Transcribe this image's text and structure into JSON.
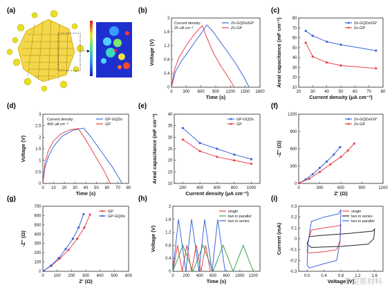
{
  "panel_letters": [
    "(a)",
    "(b)",
    "(c)",
    "(d)",
    "(e)",
    "(f)",
    "(g)",
    "(h)",
    "(i)"
  ],
  "watermark": "新型炭材料",
  "colors": {
    "blue": "#3a66d8",
    "red": "#e8434a",
    "green": "#3aa34a",
    "black": "#222222"
  },
  "chart_data": [
    {
      "id": "b",
      "type": "line",
      "xlabel": "Time (s)",
      "ylabel": "Voltage (V)",
      "xlim": [
        0,
        1800
      ],
      "ylim": [
        0,
        2.0
      ],
      "xticks": [
        0,
        300,
        600,
        900,
        1200,
        1500,
        1800
      ],
      "yticks": [
        0,
        0.4,
        0.8,
        1.2,
        1.6,
        2.0
      ],
      "annotation": [
        "Current density:",
        "25 uA cm⁻²"
      ],
      "legend_pos": "top-right",
      "series": [
        {
          "name": "Zn-GQDs/GP",
          "color": "blue",
          "points": [
            [
              0,
              0
            ],
            [
              80,
              0.45
            ],
            [
              200,
              0.75
            ],
            [
              350,
              1.05
            ],
            [
              500,
              1.35
            ],
            [
              600,
              1.55
            ],
            [
              720,
              1.8
            ],
            [
              850,
              1.6
            ],
            [
              1000,
              1.3
            ],
            [
              1150,
              1.0
            ],
            [
              1300,
              0.7
            ],
            [
              1450,
              0.35
            ],
            [
              1580,
              0
            ]
          ]
        },
        {
          "name": "Zn-GP",
          "color": "red",
          "points": [
            [
              0,
              0
            ],
            [
              60,
              0.5
            ],
            [
              150,
              0.85
            ],
            [
              300,
              1.2
            ],
            [
              450,
              1.5
            ],
            [
              560,
              1.68
            ],
            [
              630,
              1.78
            ],
            [
              700,
              1.5
            ],
            [
              850,
              1.0
            ],
            [
              1000,
              0.62
            ],
            [
              1150,
              0.3
            ],
            [
              1280,
              0
            ]
          ]
        }
      ]
    },
    {
      "id": "c",
      "type": "line",
      "xlabel": "Current density (μA cm⁻²)",
      "ylabel": "Areal capacitance (mF cm⁻²)",
      "xlim": [
        20,
        80
      ],
      "ylim": [
        10,
        80
      ],
      "xticks": [
        20,
        30,
        40,
        50,
        60,
        70,
        80
      ],
      "yticks": [
        10,
        20,
        30,
        40,
        50,
        60,
        70,
        80
      ],
      "legend_pos": "top-right",
      "markers": true,
      "series": [
        {
          "name": "Zn-GQDs/GP",
          "color": "blue",
          "points": [
            [
              25,
              67
            ],
            [
              30,
              62
            ],
            [
              40,
              56
            ],
            [
              50,
              53
            ],
            [
              75,
              47
            ]
          ]
        },
        {
          "name": "Zn-GP",
          "color": "red",
          "points": [
            [
              25,
              55
            ],
            [
              30,
              41
            ],
            [
              40,
              35
            ],
            [
              50,
              32
            ],
            [
              75,
              29
            ]
          ]
        }
      ]
    },
    {
      "id": "d",
      "type": "line",
      "xlabel": "Time (s)",
      "ylabel": "Voltage (V)",
      "xlim": [
        0,
        80
      ],
      "ylim": [
        0,
        3.0
      ],
      "xticks": [
        0,
        10,
        20,
        30,
        40,
        50,
        60,
        70,
        80
      ],
      "yticks": [
        0,
        0.5,
        1.0,
        1.5,
        2.0,
        2.5,
        3.0
      ],
      "annotation": [
        "Current density:",
        "400 uA cm⁻²"
      ],
      "legend_pos": "top-right",
      "series": [
        {
          "name": "GP-GQDs",
          "color": "blue",
          "points": [
            [
              0,
              0
            ],
            [
              2,
              0.7
            ],
            [
              5,
              1.15
            ],
            [
              10,
              1.6
            ],
            [
              18,
              2.05
            ],
            [
              28,
              2.3
            ],
            [
              38,
              2.4
            ],
            [
              45,
              2.0
            ],
            [
              55,
              1.35
            ],
            [
              65,
              0.7
            ],
            [
              74,
              0
            ]
          ]
        },
        {
          "name": "GP",
          "color": "red",
          "points": [
            [
              0,
              0
            ],
            [
              2,
              0.9
            ],
            [
              5,
              1.4
            ],
            [
              10,
              1.85
            ],
            [
              17,
              2.15
            ],
            [
              25,
              2.32
            ],
            [
              33,
              2.38
            ],
            [
              40,
              1.9
            ],
            [
              50,
              1.1
            ],
            [
              57,
              0.55
            ],
            [
              63,
              0
            ]
          ]
        }
      ]
    },
    {
      "id": "e",
      "type": "line",
      "xlabel": "Current density (μA cm⁻²)",
      "ylabel": "Areal capacitance (mF cm⁻²)",
      "xlim": [
        100,
        1100
      ],
      "ylim": [
        10,
        40
      ],
      "xticks": [
        200,
        400,
        600,
        800,
        1000
      ],
      "yticks": [
        10,
        15,
        20,
        25,
        30,
        35,
        40
      ],
      "legend_pos": "top-right",
      "markers": true,
      "series": [
        {
          "name": "GP-GQDs",
          "color": "blue",
          "points": [
            [
              200,
              34
            ],
            [
              400,
              27.5
            ],
            [
              600,
              25
            ],
            [
              800,
              22.5
            ],
            [
              1000,
              20.5
            ]
          ]
        },
        {
          "name": "GP",
          "color": "red",
          "points": [
            [
              200,
              29
            ],
            [
              400,
              24
            ],
            [
              600,
              21.5
            ],
            [
              800,
              20
            ],
            [
              1000,
              18.5
            ]
          ]
        }
      ]
    },
    {
      "id": "f",
      "type": "line",
      "xlabel": "Z' (Ω)",
      "ylabel": "-Z'' (Ω)",
      "xlim": [
        0,
        1200
      ],
      "ylim": [
        0,
        1200
      ],
      "xticks": [
        0,
        300,
        600,
        900,
        1200
      ],
      "yticks": [
        0,
        300,
        600,
        900,
        1200
      ],
      "legend_pos": "top-right",
      "markers": true,
      "series": [
        {
          "name": "Zn-GQDs/GP",
          "color": "blue",
          "points": [
            [
              5,
              5
            ],
            [
              100,
              70
            ],
            [
              200,
              160
            ],
            [
              300,
              270
            ],
            [
              400,
              380
            ],
            [
              500,
              500
            ],
            [
              590,
              630
            ]
          ]
        },
        {
          "name": "Zn-GP",
          "color": "red",
          "points": [
            [
              5,
              5
            ],
            [
              150,
              80
            ],
            [
              300,
              200
            ],
            [
              450,
              330
            ],
            [
              600,
              460
            ],
            [
              700,
              570
            ],
            [
              790,
              690
            ]
          ]
        }
      ]
    },
    {
      "id": "g",
      "type": "line",
      "xlabel": "Z' (Ω)",
      "ylabel": "-Z'' (Ω)",
      "xlim": [
        0,
        600
      ],
      "ylim": [
        0,
        700
      ],
      "xticks": [
        0,
        100,
        200,
        300,
        400,
        500,
        600
      ],
      "yticks": [
        0,
        100,
        200,
        300,
        400,
        500,
        600,
        700
      ],
      "legend_pos": "top-right",
      "markers": true,
      "series": [
        {
          "name": "GP",
          "color": "red",
          "points": [
            [
              5,
              5
            ],
            [
              60,
              60
            ],
            [
              120,
              140
            ],
            [
              180,
              230
            ],
            [
              240,
              350
            ],
            [
              290,
              470
            ],
            [
              330,
              610
            ]
          ]
        },
        {
          "name": "GP-GQDs",
          "color": "blue",
          "points": [
            [
              5,
              5
            ],
            [
              55,
              60
            ],
            [
              110,
              140
            ],
            [
              160,
              240
            ],
            [
              210,
              350
            ],
            [
              250,
              470
            ],
            [
              285,
              615
            ]
          ]
        }
      ]
    },
    {
      "id": "h",
      "type": "line",
      "xlabel": "Time (s)",
      "ylabel": "Voltage (V)",
      "xlim": [
        0,
        1300
      ],
      "ylim": [
        0,
        2.0
      ],
      "xticks": [
        0,
        200,
        400,
        600,
        800,
        1000,
        1200
      ],
      "yticks": [
        0,
        0.4,
        0.8,
        1.2,
        1.6,
        2.0
      ],
      "legend_pos": "top-right",
      "series": [
        {
          "name": "single",
          "color": "red",
          "points": [
            [
              0,
              0
            ],
            [
              70,
              0.8
            ],
            [
              140,
              0
            ],
            [
              210,
              0.8
            ],
            [
              280,
              0
            ],
            [
              350,
              0.8
            ],
            [
              420,
              0
            ],
            [
              490,
              0.8
            ],
            [
              560,
              0
            ]
          ]
        },
        {
          "name": "two in parallel",
          "color": "green",
          "points": [
            [
              0,
              0
            ],
            [
              150,
              0.8
            ],
            [
              300,
              0
            ],
            [
              450,
              0.8
            ],
            [
              600,
              0
            ],
            [
              750,
              0.8
            ],
            [
              900,
              0
            ],
            [
              1050,
              0.8
            ],
            [
              1200,
              0
            ]
          ]
        },
        {
          "name": "two in series",
          "color": "blue",
          "points": [
            [
              0,
              0
            ],
            [
              85,
              1.6
            ],
            [
              195,
              0
            ],
            [
              280,
              1.6
            ],
            [
              390,
              0
            ],
            [
              475,
              1.6
            ],
            [
              585,
              0
            ],
            [
              670,
              1.6
            ],
            [
              780,
              0
            ]
          ]
        }
      ]
    },
    {
      "id": "i",
      "type": "line",
      "xlabel": "Voltage (V)",
      "ylabel": "Current (mA)",
      "xlim": [
        -0.2,
        1.8
      ],
      "ylim": [
        -0.3,
        0.3
      ],
      "xticks": [
        0,
        0.4,
        0.8,
        1.2,
        1.6
      ],
      "xticklabels": [
        "0.0",
        "0.4",
        "0.8",
        "1.2",
        "1.6"
      ],
      "yticks": [
        -0.3,
        -0.2,
        -0.1,
        0,
        0.1,
        0.2,
        0.3
      ],
      "legend_pos": "top-right",
      "series": [
        {
          "name": "single",
          "color": "red",
          "points": [
            [
              0,
              -0.12
            ],
            [
              0.02,
              -0.03
            ],
            [
              0.1,
              0.08
            ],
            [
              0.4,
              0.1
            ],
            [
              0.75,
              0.12
            ],
            [
              0.8,
              0.13
            ],
            [
              0.78,
              -0.02
            ],
            [
              0.7,
              -0.1
            ],
            [
              0.4,
              -0.12
            ],
            [
              0.05,
              -0.13
            ],
            [
              0,
              -0.12
            ]
          ]
        },
        {
          "name": "two in series",
          "color": "black",
          "points": [
            [
              0,
              -0.05
            ],
            [
              0.05,
              0.02
            ],
            [
              0.3,
              0.03
            ],
            [
              1.0,
              0.05
            ],
            [
              1.55,
              0.07
            ],
            [
              1.6,
              0.09
            ],
            [
              1.58,
              0.0
            ],
            [
              1.45,
              -0.05
            ],
            [
              0.8,
              -0.07
            ],
            [
              0.1,
              -0.08
            ],
            [
              0,
              -0.05
            ]
          ]
        },
        {
          "name": "two in parallel",
          "color": "blue",
          "points": [
            [
              0,
              -0.24
            ],
            [
              0.02,
              -0.05
            ],
            [
              0.1,
              0.16
            ],
            [
              0.4,
              0.2
            ],
            [
              0.75,
              0.23
            ],
            [
              0.8,
              0.27
            ],
            [
              0.78,
              -0.03
            ],
            [
              0.7,
              -0.2
            ],
            [
              0.4,
              -0.23
            ],
            [
              0.05,
              -0.27
            ],
            [
              0,
              -0.24
            ]
          ]
        }
      ]
    }
  ]
}
